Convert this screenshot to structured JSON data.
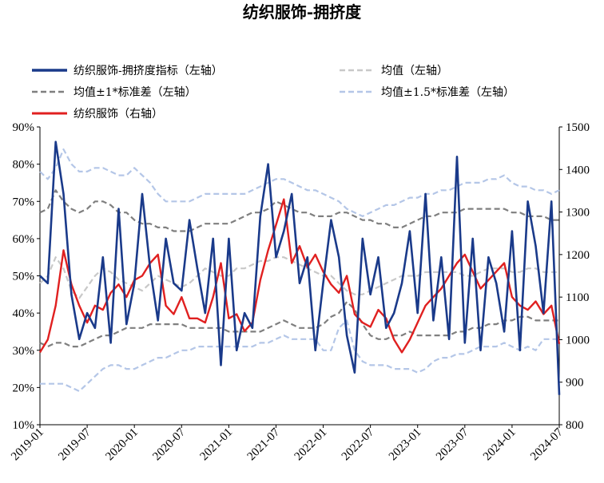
{
  "chart_data": {
    "type": "line",
    "title": "纺织服饰-拥挤度",
    "x": [
      "2019-01",
      "2019-02",
      "2019-03",
      "2019-04",
      "2019-05",
      "2019-06",
      "2019-07",
      "2019-08",
      "2019-09",
      "2019-10",
      "2019-11",
      "2019-12",
      "2020-01",
      "2020-02",
      "2020-03",
      "2020-04",
      "2020-05",
      "2020-06",
      "2020-07",
      "2020-08",
      "2020-09",
      "2020-10",
      "2020-11",
      "2020-12",
      "2021-01",
      "2021-02",
      "2021-03",
      "2021-04",
      "2021-05",
      "2021-06",
      "2021-07",
      "2021-08",
      "2021-09",
      "2021-10",
      "2021-11",
      "2021-12",
      "2022-01",
      "2022-02",
      "2022-03",
      "2022-04",
      "2022-05",
      "2022-06",
      "2022-07",
      "2022-08",
      "2022-09",
      "2022-10",
      "2022-11",
      "2022-12",
      "2023-01",
      "2023-02",
      "2023-03",
      "2023-04",
      "2023-05",
      "2023-06",
      "2023-07",
      "2023-08",
      "2023-09",
      "2023-10",
      "2023-11",
      "2023-12",
      "2024-01",
      "2024-02",
      "2024-03",
      "2024-04",
      "2024-05",
      "2024-06",
      "2024-07"
    ],
    "x_ticks": [
      "2019-01",
      "2019-07",
      "2020-01",
      "2020-07",
      "2021-01",
      "2021-07",
      "2022-01",
      "2022-07",
      "2023-01",
      "2023-07",
      "2024-01",
      "2024-07"
    ],
    "left_axis": {
      "ylim": [
        0.1,
        0.9
      ],
      "ticks": [
        "10%",
        "20%",
        "30%",
        "40%",
        "50%",
        "60%",
        "70%",
        "80%",
        "90%"
      ]
    },
    "right_axis": {
      "ylim": [
        800,
        1500
      ],
      "ticks": [
        "800",
        "900",
        "1000",
        "1100",
        "1200",
        "1300",
        "1400",
        "1500"
      ]
    },
    "series": [
      {
        "name": "纺织服饰-拥挤度指标（左轴）",
        "axis": "left",
        "color": "#1a3a8a",
        "dash": "solid",
        "values": [
          0.5,
          0.48,
          0.86,
          0.72,
          0.45,
          0.33,
          0.4,
          0.36,
          0.55,
          0.32,
          0.68,
          0.37,
          0.48,
          0.72,
          0.52,
          0.38,
          0.6,
          0.48,
          0.46,
          0.65,
          0.52,
          0.4,
          0.6,
          0.26,
          0.6,
          0.3,
          0.4,
          0.36,
          0.66,
          0.8,
          0.55,
          0.62,
          0.72,
          0.48,
          0.55,
          0.3,
          0.48,
          0.65,
          0.55,
          0.34,
          0.24,
          0.6,
          0.45,
          0.55,
          0.36,
          0.4,
          0.48,
          0.62,
          0.4,
          0.72,
          0.38,
          0.55,
          0.33,
          0.82,
          0.32,
          0.6,
          0.3,
          0.55,
          0.48,
          0.35,
          0.62,
          0.3,
          0.7,
          0.58,
          0.4,
          0.7,
          0.18
        ]
      },
      {
        "name": "均值（左轴）",
        "axis": "left",
        "color": "#c8c8c8",
        "dash": "dashed",
        "values": [
          0.48,
          0.5,
          0.55,
          0.52,
          0.46,
          0.44,
          0.47,
          0.5,
          0.52,
          0.51,
          0.49,
          0.48,
          0.47,
          0.46,
          0.48,
          0.5,
          0.49,
          0.48,
          0.47,
          0.48,
          0.5,
          0.52,
          0.51,
          0.5,
          0.5,
          0.52,
          0.52,
          0.53,
          0.54,
          0.54,
          0.55,
          0.55,
          0.54,
          0.53,
          0.52,
          0.51,
          0.5,
          0.5,
          0.48,
          0.46,
          0.45,
          0.45,
          0.46,
          0.47,
          0.48,
          0.49,
          0.5,
          0.5,
          0.5,
          0.51,
          0.51,
          0.51,
          0.51,
          0.51,
          0.5,
          0.5,
          0.51,
          0.52,
          0.52,
          0.52,
          0.51,
          0.51,
          0.52,
          0.52,
          0.51,
          0.51,
          0.51
        ]
      },
      {
        "name": "均值±1*标准差（左轴）",
        "axis": "left",
        "color": "#7f7f7f",
        "dash": "dashed",
        "values": [
          0.67,
          0.68,
          0.73,
          0.7,
          0.68,
          0.67,
          0.68,
          0.7,
          0.7,
          0.69,
          0.67,
          0.67,
          0.65,
          0.64,
          0.64,
          0.63,
          0.63,
          0.62,
          0.62,
          0.62,
          0.63,
          0.64,
          0.64,
          0.64,
          0.64,
          0.65,
          0.66,
          0.67,
          0.67,
          0.68,
          0.7,
          0.69,
          0.68,
          0.67,
          0.67,
          0.66,
          0.66,
          0.66,
          0.67,
          0.67,
          0.66,
          0.65,
          0.65,
          0.64,
          0.64,
          0.63,
          0.63,
          0.64,
          0.65,
          0.66,
          0.66,
          0.67,
          0.67,
          0.67,
          0.68,
          0.68,
          0.68,
          0.68,
          0.68,
          0.68,
          0.67,
          0.67,
          0.66,
          0.66,
          0.66,
          0.65,
          0.65
        ]
      },
      {
        "name": "均值±1*标准差（左轴）",
        "axis": "left",
        "color": "#7f7f7f",
        "dash": "dashed",
        "values": [
          0.32,
          0.31,
          0.32,
          0.32,
          0.31,
          0.31,
          0.32,
          0.33,
          0.34,
          0.34,
          0.35,
          0.36,
          0.36,
          0.36,
          0.37,
          0.37,
          0.37,
          0.37,
          0.37,
          0.36,
          0.36,
          0.36,
          0.36,
          0.36,
          0.35,
          0.35,
          0.35,
          0.35,
          0.35,
          0.36,
          0.37,
          0.38,
          0.37,
          0.36,
          0.36,
          0.36,
          0.37,
          0.39,
          0.4,
          0.43,
          0.41,
          0.37,
          0.34,
          0.33,
          0.33,
          0.34,
          0.34,
          0.35,
          0.34,
          0.34,
          0.34,
          0.34,
          0.34,
          0.35,
          0.35,
          0.36,
          0.36,
          0.37,
          0.37,
          0.38,
          0.38,
          0.39,
          0.39,
          0.38,
          0.38,
          0.38,
          0.38
        ]
      },
      {
        "name": "均值±1.5*标准差（左轴）",
        "axis": "left",
        "color": "#b4c6e7",
        "dash": "dashed",
        "values": [
          0.78,
          0.76,
          0.79,
          0.84,
          0.8,
          0.78,
          0.78,
          0.79,
          0.79,
          0.78,
          0.77,
          0.77,
          0.79,
          0.77,
          0.75,
          0.72,
          0.7,
          0.7,
          0.7,
          0.7,
          0.71,
          0.72,
          0.72,
          0.72,
          0.72,
          0.72,
          0.72,
          0.73,
          0.74,
          0.75,
          0.76,
          0.76,
          0.75,
          0.74,
          0.73,
          0.73,
          0.72,
          0.71,
          0.7,
          0.68,
          0.67,
          0.66,
          0.67,
          0.68,
          0.69,
          0.69,
          0.7,
          0.71,
          0.71,
          0.72,
          0.72,
          0.73,
          0.73,
          0.74,
          0.75,
          0.75,
          0.75,
          0.76,
          0.76,
          0.77,
          0.75,
          0.74,
          0.74,
          0.73,
          0.73,
          0.72,
          0.73
        ]
      },
      {
        "name": "均值±1.5*标准差（左轴）",
        "axis": "left",
        "color": "#b4c6e7",
        "dash": "dashed",
        "values": [
          0.21,
          0.21,
          0.21,
          0.21,
          0.2,
          0.19,
          0.21,
          0.23,
          0.25,
          0.26,
          0.26,
          0.25,
          0.25,
          0.26,
          0.27,
          0.28,
          0.28,
          0.29,
          0.3,
          0.3,
          0.31,
          0.31,
          0.31,
          0.31,
          0.31,
          0.31,
          0.31,
          0.31,
          0.32,
          0.32,
          0.33,
          0.34,
          0.33,
          0.33,
          0.33,
          0.33,
          0.3,
          0.3,
          0.36,
          0.38,
          0.3,
          0.27,
          0.26,
          0.26,
          0.26,
          0.25,
          0.25,
          0.25,
          0.24,
          0.25,
          0.27,
          0.28,
          0.28,
          0.29,
          0.29,
          0.3,
          0.31,
          0.31,
          0.31,
          0.32,
          0.31,
          0.3,
          0.31,
          0.3,
          0.33,
          0.33,
          0.33
        ]
      },
      {
        "name": "纺织服饰（右轴）",
        "axis": "right",
        "color": "#e02020",
        "dash": "solid",
        "values": [
          970,
          1000,
          1080,
          1210,
          1130,
          1080,
          1040,
          1080,
          1070,
          1110,
          1130,
          1100,
          1140,
          1150,
          1180,
          1200,
          1080,
          1060,
          1100,
          1050,
          1050,
          1040,
          1100,
          1180,
          1050,
          1060,
          1020,
          1040,
          1140,
          1210,
          1270,
          1330,
          1180,
          1220,
          1170,
          1200,
          1160,
          1130,
          1110,
          1150,
          1060,
          1040,
          1030,
          1070,
          1050,
          1000,
          970,
          1000,
          1040,
          1080,
          1100,
          1120,
          1150,
          1180,
          1200,
          1160,
          1120,
          1140,
          1160,
          1180,
          1100,
          1080,
          1070,
          1090,
          1060,
          1080,
          990
        ]
      }
    ]
  }
}
